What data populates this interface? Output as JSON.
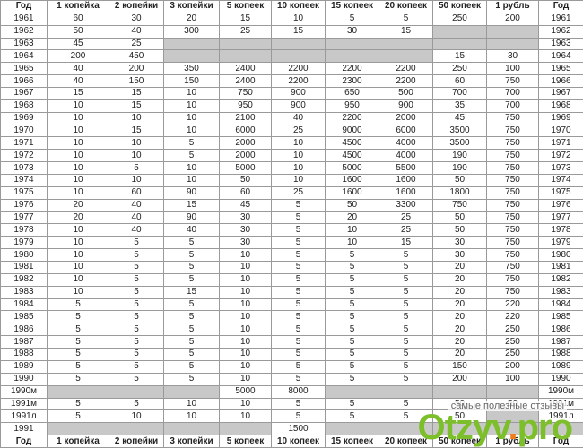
{
  "table": {
    "header": [
      "Год",
      "1 копейка",
      "2 копейки",
      "3 копейки",
      "5 копеек",
      "10 копеек",
      "15 копеек",
      "20 копеек",
      "50 копеек",
      "1 рубль",
      "Год"
    ],
    "rows": [
      [
        1961,
        60,
        30,
        20,
        15,
        10,
        5,
        5,
        250,
        200,
        1961
      ],
      [
        1962,
        50,
        40,
        300,
        25,
        15,
        30,
        15,
        null,
        null,
        1962
      ],
      [
        1963,
        45,
        25,
        null,
        null,
        null,
        null,
        null,
        null,
        null,
        1963
      ],
      [
        1964,
        200,
        450,
        null,
        null,
        null,
        null,
        null,
        15,
        30,
        1964
      ],
      [
        1965,
        40,
        200,
        350,
        2400,
        2200,
        2200,
        2200,
        250,
        100,
        1965
      ],
      [
        1966,
        40,
        150,
        150,
        2400,
        2200,
        2300,
        2200,
        60,
        750,
        1966
      ],
      [
        1967,
        15,
        15,
        10,
        750,
        900,
        650,
        500,
        700,
        700,
        1967
      ],
      [
        1968,
        10,
        15,
        10,
        950,
        900,
        950,
        900,
        35,
        700,
        1968
      ],
      [
        1969,
        10,
        10,
        10,
        2100,
        40,
        2200,
        2000,
        45,
        750,
        1969
      ],
      [
        1970,
        10,
        15,
        10,
        6000,
        25,
        9000,
        6000,
        3500,
        750,
        1970
      ],
      [
        1971,
        10,
        10,
        5,
        2000,
        10,
        4500,
        4000,
        3500,
        750,
        1971
      ],
      [
        1972,
        10,
        10,
        5,
        2000,
        10,
        4500,
        4000,
        190,
        750,
        1972
      ],
      [
        1973,
        10,
        5,
        10,
        5000,
        10,
        5000,
        5500,
        190,
        750,
        1973
      ],
      [
        1974,
        10,
        10,
        10,
        50,
        10,
        1600,
        1600,
        50,
        750,
        1974
      ],
      [
        1975,
        10,
        60,
        90,
        60,
        25,
        1600,
        1600,
        1800,
        750,
        1975
      ],
      [
        1976,
        20,
        40,
        15,
        45,
        5,
        50,
        3300,
        750,
        750,
        1976
      ],
      [
        1977,
        20,
        40,
        90,
        30,
        5,
        20,
        25,
        50,
        750,
        1977
      ],
      [
        1978,
        10,
        40,
        40,
        30,
        5,
        10,
        25,
        50,
        750,
        1978
      ],
      [
        1979,
        10,
        5,
        5,
        30,
        5,
        10,
        15,
        30,
        750,
        1979
      ],
      [
        1980,
        10,
        5,
        5,
        10,
        5,
        5,
        5,
        30,
        750,
        1980
      ],
      [
        1981,
        10,
        5,
        5,
        10,
        5,
        5,
        5,
        20,
        750,
        1981
      ],
      [
        1982,
        10,
        5,
        5,
        10,
        5,
        5,
        5,
        20,
        750,
        1982
      ],
      [
        1983,
        10,
        5,
        15,
        10,
        5,
        5,
        5,
        20,
        750,
        1983
      ],
      [
        1984,
        5,
        5,
        5,
        10,
        5,
        5,
        5,
        20,
        220,
        1984
      ],
      [
        1985,
        5,
        5,
        5,
        10,
        5,
        5,
        5,
        20,
        220,
        1985
      ],
      [
        1986,
        5,
        5,
        5,
        10,
        5,
        5,
        5,
        20,
        250,
        1986
      ],
      [
        1987,
        5,
        5,
        5,
        10,
        5,
        5,
        5,
        20,
        250,
        1987
      ],
      [
        1988,
        5,
        5,
        5,
        10,
        5,
        5,
        5,
        20,
        250,
        1988
      ],
      [
        1989,
        5,
        5,
        5,
        10,
        5,
        5,
        5,
        150,
        200,
        1989
      ],
      [
        1990,
        5,
        5,
        5,
        10,
        5,
        5,
        5,
        200,
        100,
        1990
      ],
      [
        "1990м",
        null,
        null,
        null,
        5000,
        8000,
        null,
        null,
        null,
        null,
        "1990м"
      ],
      [
        "1991м",
        5,
        5,
        10,
        10,
        5,
        5,
        5,
        50,
        50,
        "1991м"
      ],
      [
        "1991л",
        5,
        10,
        10,
        10,
        5,
        5,
        5,
        50,
        null,
        "1991л"
      ],
      [
        1991,
        null,
        null,
        null,
        null,
        1500,
        null,
        null,
        null,
        null,
        null
      ]
    ],
    "footer": [
      "Год",
      "1 копейка",
      "2 копейки",
      "3 копейки",
      "5 копеек",
      "10 копеек",
      "15 копеек",
      "20 копеек",
      "50 копеек",
      "1 рубль",
      "Год"
    ]
  },
  "watermark": {
    "tagline": "самые полезные отзывы",
    "brand": "Otzyv",
    "dot": ".",
    "domain": "pro"
  }
}
